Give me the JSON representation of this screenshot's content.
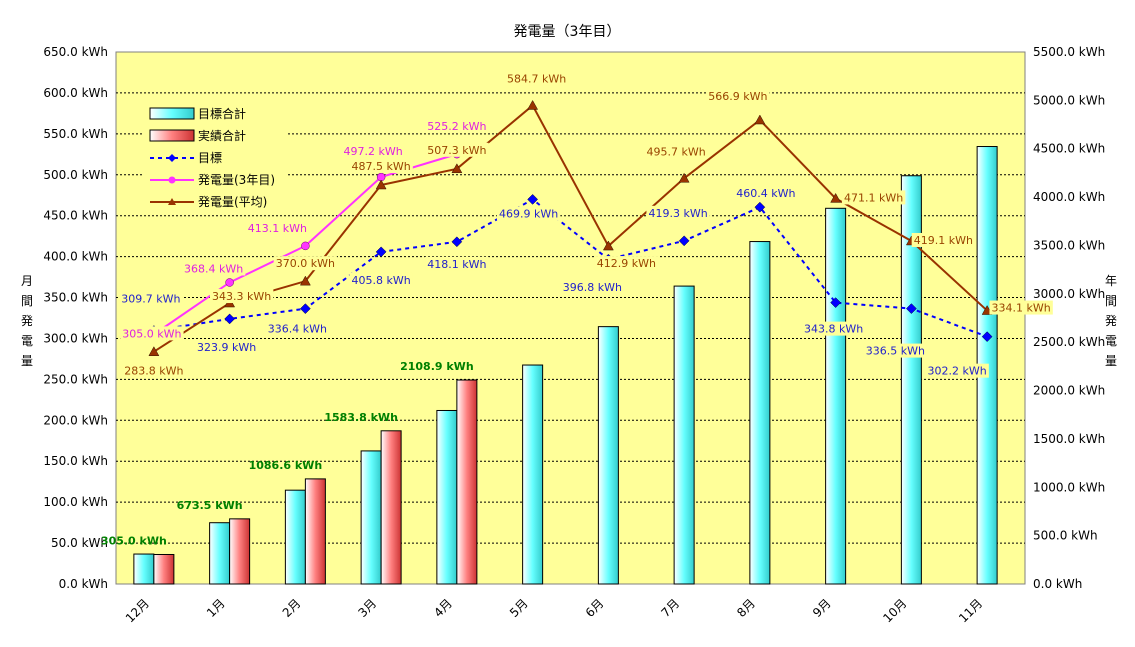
{
  "chart_data": {
    "type": "bar",
    "title": "発電量（3年目）",
    "ylabel": "月間発電量",
    "ylabel2": "年間発電量",
    "categories": [
      "12月",
      "1月",
      "2月",
      "3月",
      "4月",
      "5月",
      "6月",
      "7月",
      "8月",
      "9月",
      "10月",
      "11月"
    ],
    "ylim": [
      0,
      650
    ],
    "y2lim": [
      0,
      5500
    ],
    "yticks": [
      "0.0 kWh",
      "50.0 kWh",
      "100.0 kWh",
      "150.0 kWh",
      "200.0 kWh",
      "250.0 kWh",
      "300.0 kWh",
      "350.0 kWh",
      "400.0 kWh",
      "450.0 kWh",
      "500.0 kWh",
      "550.0 kWh",
      "600.0 kWh",
      "650.0 kWh"
    ],
    "y2ticks": [
      "0.0 kWh",
      "500.0 kWh",
      "1000.0 kWh",
      "1500.0 kWh",
      "2000.0 kWh",
      "2500.0 kWh",
      "3000.0 kWh",
      "3500.0 kWh",
      "4000.0 kWh",
      "4500.0 kWh",
      "5000.0 kWh",
      "5500.0 kWh"
    ],
    "grid": true,
    "legend_position": "top-left",
    "colors": {
      "plot_bg": "#ffff99",
      "target_bar": "#66ffff",
      "actual_bar": "#ff8080",
      "target_line": "#0000ff",
      "year3_line": "#ff33ff",
      "avg_line": "#993300",
      "cum_label": "#008000"
    },
    "bar_series": [
      {
        "name": "目標合計",
        "axis": "right",
        "values": [
          309.7,
          633.6,
          970.0,
          1375.8,
          1793.9,
          2263.8,
          2660.6,
          3079.9,
          3540.3,
          3884.1,
          4220.6,
          4522.8
        ]
      },
      {
        "name": "実績合計",
        "axis": "right",
        "values": [
          305.0,
          673.5,
          1086.6,
          1583.8,
          2108.9,
          null,
          null,
          null,
          null,
          null,
          null,
          null
        ],
        "labels": [
          "305.0 kWh",
          "673.5 kWh",
          "1086.6 kWh",
          "1583.8 kWh",
          "2108.9 kWh"
        ]
      }
    ],
    "line_series": [
      {
        "name": "目標",
        "axis": "left",
        "dashed": true,
        "marker": "diamond",
        "values": [
          309.7,
          323.9,
          336.4,
          405.8,
          418.1,
          469.9,
          396.8,
          419.3,
          460.4,
          343.8,
          336.5,
          302.2
        ],
        "labels": [
          "309.7 kWh",
          "323.9 kWh",
          "336.4 kWh",
          "405.8 kWh",
          "418.1 kWh",
          "469.9 kWh",
          "396.8 kWh",
          "419.3 kWh",
          "460.4 kWh",
          "343.8 kWh",
          "336.5 kWh",
          "302.2 kWh"
        ]
      },
      {
        "name": "発電量(3年目)",
        "axis": "left",
        "marker": "circle",
        "values": [
          305.0,
          368.4,
          413.1,
          497.2,
          525.2,
          null,
          null,
          null,
          null,
          null,
          null,
          null
        ],
        "labels": [
          "305.0 kWh",
          "368.4 kWh",
          "413.1 kWh",
          "497.2 kWh",
          "525.2 kWh"
        ]
      },
      {
        "name": "発電量(平均)",
        "axis": "left",
        "marker": "triangle",
        "values": [
          283.8,
          343.3,
          370.0,
          487.5,
          507.3,
          584.7,
          412.9,
          495.7,
          566.9,
          471.1,
          419.1,
          334.1
        ],
        "labels": [
          "283.8 kWh",
          "343.3 kWh",
          "370.0 kWh",
          "487.5 kWh",
          "507.3 kWh",
          "584.7 kWh",
          "412.9 kWh",
          "495.7 kWh",
          "566.9 kWh",
          "471.1 kWh",
          "419.1 kWh",
          "334.1 kWh"
        ]
      }
    ]
  }
}
